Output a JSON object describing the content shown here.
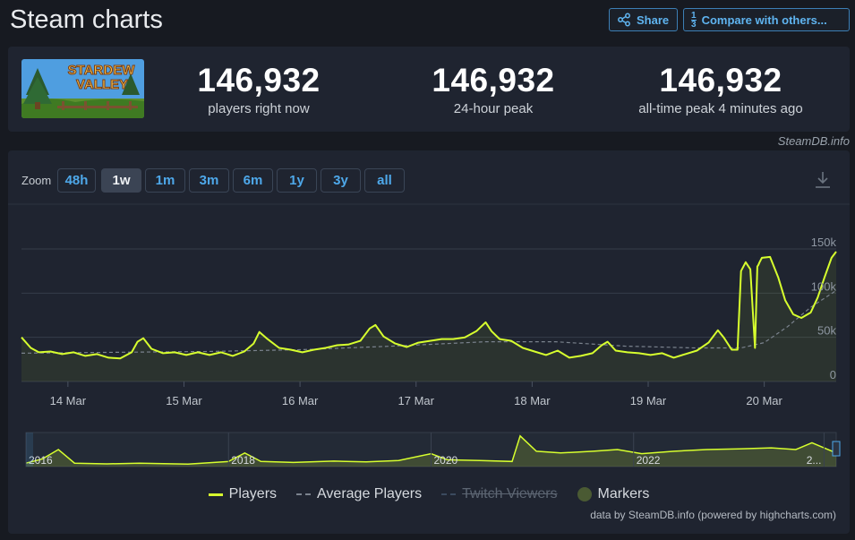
{
  "header": {
    "title": "Steam charts",
    "share_label": "Share",
    "compare_label": "Compare with others...",
    "compare_frac_top": "1",
    "compare_frac_bottom": "3"
  },
  "game": {
    "logo_text_1": "STARDEW",
    "logo_text_2": "VALLEY"
  },
  "stats": [
    {
      "value": "146,932",
      "label": "players right now"
    },
    {
      "value": "146,932",
      "label": "24-hour peak"
    },
    {
      "value": "146,932",
      "label": "all-time peak 4 minutes ago"
    }
  ],
  "credit": "SteamDB.info",
  "zoom": {
    "label": "Zoom",
    "options": [
      "48h",
      "1w",
      "1m",
      "3m",
      "6m",
      "1y",
      "3y",
      "all"
    ],
    "active": "1w"
  },
  "legend": [
    {
      "label": "Players",
      "style": "line",
      "enabled": true
    },
    {
      "label": "Average Players",
      "style": "dash",
      "enabled": true
    },
    {
      "label": "Twitch Viewers",
      "style": "twitch",
      "enabled": false
    },
    {
      "label": "Markers",
      "style": "dot",
      "enabled": true
    }
  ],
  "powered_by": "data by SteamDB.info (powered by highcharts.com)",
  "colors": {
    "players": "#d7ff2e",
    "average": "#7a828d",
    "accent": "#4ea8ea",
    "panel": "#1f2430"
  },
  "chart_data": {
    "type": "line",
    "x_tick_labels": [
      "14 Mar",
      "15 Mar",
      "16 Mar",
      "17 Mar",
      "18 Mar",
      "19 Mar",
      "20 Mar"
    ],
    "y_tick_labels": [
      "0",
      "50k",
      "100k",
      "150k"
    ],
    "ylim": [
      0,
      150000
    ],
    "x_range_days": [
      13.6,
      20.62
    ],
    "grid": true,
    "series": [
      {
        "name": "Players",
        "x": [
          13.6,
          13.68,
          13.75,
          13.85,
          13.95,
          14.05,
          14.15,
          14.25,
          14.35,
          14.45,
          14.55,
          14.6,
          14.65,
          14.72,
          14.82,
          14.92,
          15.02,
          15.12,
          15.22,
          15.32,
          15.42,
          15.52,
          15.6,
          15.65,
          15.72,
          15.82,
          15.92,
          16.02,
          16.12,
          16.22,
          16.32,
          16.42,
          16.52,
          16.6,
          16.65,
          16.72,
          16.82,
          16.92,
          17.02,
          17.12,
          17.22,
          17.32,
          17.42,
          17.52,
          17.6,
          17.65,
          17.72,
          17.82,
          17.92,
          18.02,
          18.12,
          18.22,
          18.32,
          18.42,
          18.52,
          18.6,
          18.65,
          18.72,
          18.82,
          18.92,
          19.02,
          19.12,
          19.22,
          19.32,
          19.42,
          19.52,
          19.6,
          19.65,
          19.72,
          19.77,
          19.8,
          19.84,
          19.88,
          19.92,
          19.94,
          19.95,
          19.96,
          19.98,
          20.05,
          20.12,
          20.18,
          20.25,
          20.32,
          20.4,
          20.46,
          20.52,
          20.58,
          20.62
        ],
        "values": [
          50000,
          38000,
          33000,
          34000,
          31000,
          33000,
          29000,
          31000,
          27000,
          26000,
          33000,
          45000,
          49000,
          37000,
          32000,
          33000,
          30000,
          33000,
          30000,
          33000,
          29000,
          34000,
          43000,
          56000,
          48000,
          38000,
          36000,
          33000,
          36000,
          38000,
          41000,
          42000,
          46000,
          60000,
          64000,
          51000,
          43000,
          39000,
          44000,
          46000,
          48000,
          48000,
          50000,
          57000,
          67000,
          57000,
          48000,
          46000,
          38000,
          34000,
          30000,
          35000,
          27000,
          29000,
          32000,
          41000,
          45000,
          35000,
          33000,
          32000,
          30000,
          32000,
          27000,
          31000,
          35000,
          44000,
          58000,
          50000,
          36000,
          36000,
          125000,
          135000,
          127000,
          38000,
          130000,
          132000,
          135000,
          140000,
          141000,
          118000,
          92000,
          76000,
          72000,
          78000,
          95000,
          118000,
          140000,
          147000
        ]
      },
      {
        "name": "Average Players",
        "x": [
          13.6,
          14.4,
          15.2,
          16.0,
          16.8,
          17.6,
          18.2,
          18.8,
          19.4,
          19.8,
          20.0,
          20.2,
          20.4,
          20.62
        ],
        "values": [
          32000,
          33000,
          34000,
          36000,
          40000,
          45000,
          45000,
          40000,
          38000,
          38000,
          44000,
          62000,
          84000,
          103000
        ]
      }
    ],
    "navigator": {
      "x_tick_labels": [
        "2016",
        "2018",
        "2020",
        "2022",
        "2..."
      ]
    }
  }
}
